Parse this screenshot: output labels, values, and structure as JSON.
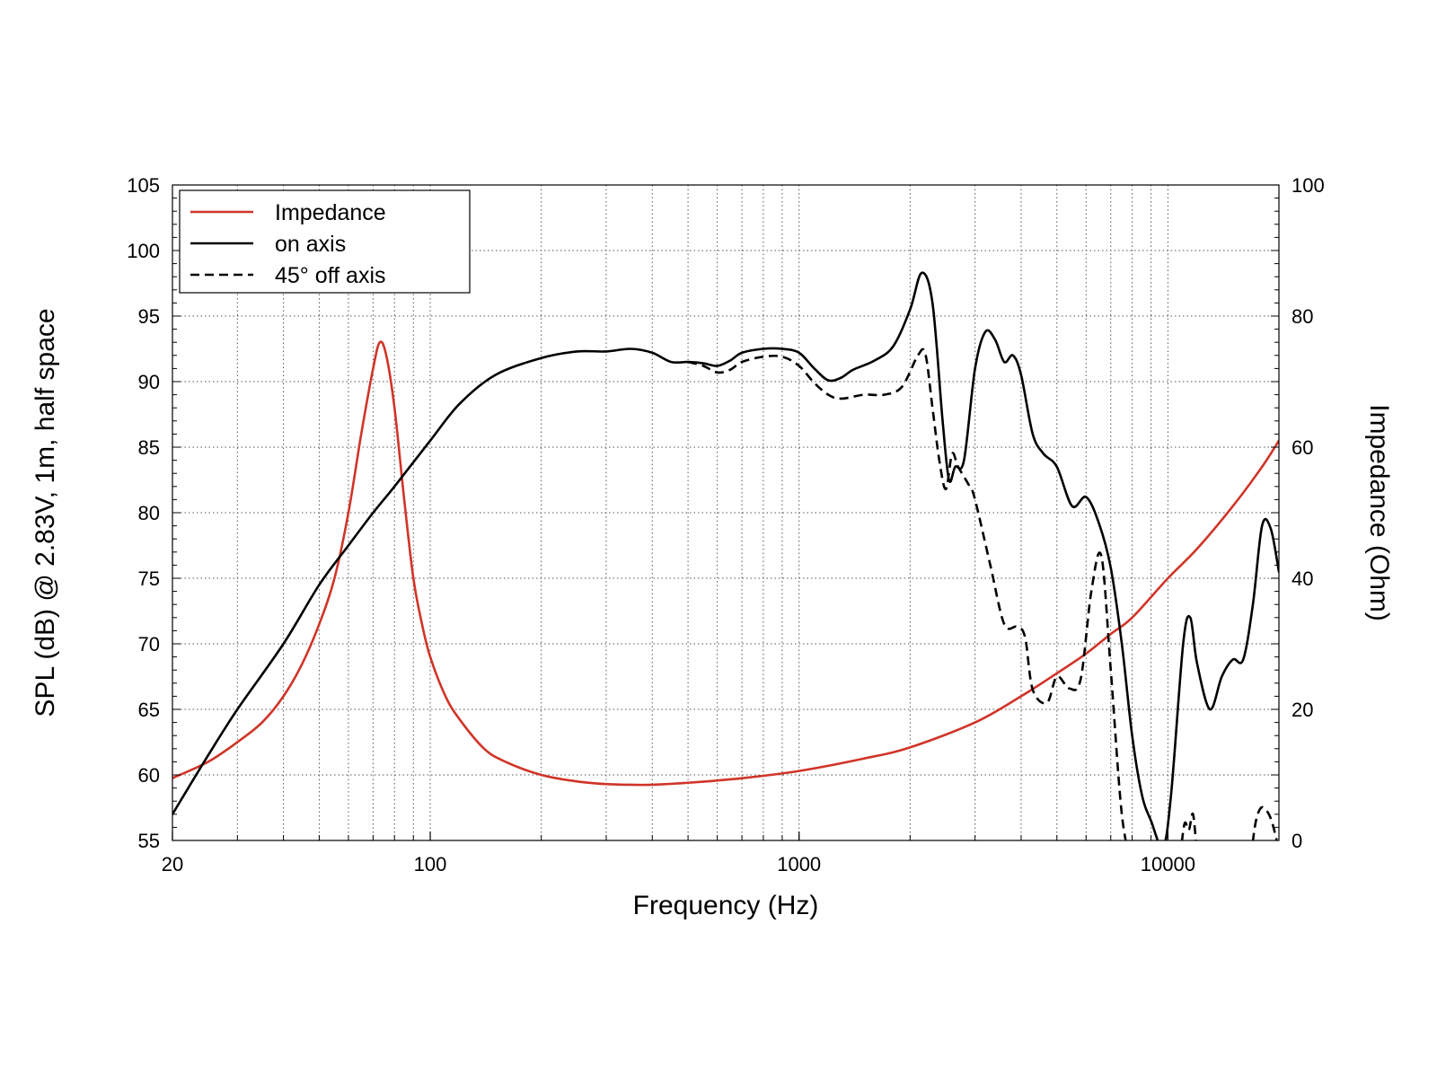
{
  "chart_data": {
    "type": "line",
    "xlabel": "Frequency (Hz)",
    "ylabel_left": "SPL (dB) @ 2.83V, 1m, half space",
    "ylabel_right": "Impedance (Ohm)",
    "x_scale": "log",
    "xlim": [
      20,
      20000
    ],
    "ylim_left": [
      55,
      105
    ],
    "ylim_right": [
      0,
      100
    ],
    "x_ticks": [
      {
        "value": 20,
        "label": "20"
      },
      {
        "value": 100,
        "label": "100"
      },
      {
        "value": 1000,
        "label": "1000"
      },
      {
        "value": 10000,
        "label": "10000"
      }
    ],
    "y_left_ticks": [
      {
        "value": 55,
        "label": "55"
      },
      {
        "value": 60,
        "label": "60"
      },
      {
        "value": 65,
        "label": "65"
      },
      {
        "value": 70,
        "label": "70"
      },
      {
        "value": 75,
        "label": "75"
      },
      {
        "value": 80,
        "label": "80"
      },
      {
        "value": 85,
        "label": "85"
      },
      {
        "value": 90,
        "label": "90"
      },
      {
        "value": 95,
        "label": "95"
      },
      {
        "value": 100,
        "label": "100"
      },
      {
        "value": 105,
        "label": "105"
      }
    ],
    "y_right_ticks": [
      {
        "value": 0,
        "label": "0"
      },
      {
        "value": 20,
        "label": "20"
      },
      {
        "value": 40,
        "label": "40"
      },
      {
        "value": 60,
        "label": "60"
      },
      {
        "value": 80,
        "label": "80"
      },
      {
        "value": 100,
        "label": "100"
      }
    ],
    "grid": true,
    "legend_position": "top-left",
    "series": [
      {
        "name": "Impedance",
        "axis": "right",
        "color": "#d03428",
        "style": "solid",
        "points": [
          [
            20,
            9.5
          ],
          [
            25,
            12
          ],
          [
            30,
            15
          ],
          [
            35,
            18
          ],
          [
            40,
            22
          ],
          [
            45,
            27
          ],
          [
            50,
            33
          ],
          [
            55,
            40
          ],
          [
            60,
            50
          ],
          [
            65,
            62
          ],
          [
            70,
            72
          ],
          [
            73,
            76
          ],
          [
            76,
            74
          ],
          [
            80,
            66
          ],
          [
            85,
            52
          ],
          [
            90,
            40
          ],
          [
            95,
            33
          ],
          [
            100,
            28
          ],
          [
            110,
            22
          ],
          [
            120,
            18.5
          ],
          [
            140,
            14
          ],
          [
            160,
            12
          ],
          [
            200,
            10
          ],
          [
            250,
            9
          ],
          [
            300,
            8.6
          ],
          [
            350,
            8.5
          ],
          [
            400,
            8.5
          ],
          [
            500,
            8.8
          ],
          [
            700,
            9.5
          ],
          [
            1000,
            10.6
          ],
          [
            1500,
            12.5
          ],
          [
            2000,
            14.2
          ],
          [
            3000,
            18
          ],
          [
            4000,
            22
          ],
          [
            5000,
            25.5
          ],
          [
            6000,
            28.5
          ],
          [
            7000,
            31.5
          ],
          [
            8000,
            34
          ],
          [
            10000,
            40
          ],
          [
            12000,
            44.5
          ],
          [
            15000,
            51
          ],
          [
            18000,
            57
          ],
          [
            20000,
            61
          ]
        ]
      },
      {
        "name": "on axis",
        "axis": "left",
        "color": "#000000",
        "style": "solid",
        "points": [
          [
            20,
            57
          ],
          [
            25,
            61.5
          ],
          [
            30,
            65
          ],
          [
            40,
            70
          ],
          [
            50,
            74.5
          ],
          [
            60,
            77.5
          ],
          [
            70,
            80
          ],
          [
            80,
            82
          ],
          [
            100,
            85.5
          ],
          [
            120,
            88.3
          ],
          [
            150,
            90.5
          ],
          [
            200,
            91.8
          ],
          [
            250,
            92.3
          ],
          [
            300,
            92.3
          ],
          [
            350,
            92.5
          ],
          [
            400,
            92.2
          ],
          [
            450,
            91.5
          ],
          [
            500,
            91.5
          ],
          [
            550,
            91.4
          ],
          [
            600,
            91.2
          ],
          [
            650,
            91.6
          ],
          [
            700,
            92.2
          ],
          [
            800,
            92.5
          ],
          [
            900,
            92.5
          ],
          [
            1000,
            92.2
          ],
          [
            1100,
            91
          ],
          [
            1200,
            90.1
          ],
          [
            1300,
            90.3
          ],
          [
            1400,
            90.9
          ],
          [
            1600,
            91.6
          ],
          [
            1800,
            92.7
          ],
          [
            2000,
            95.5
          ],
          [
            2150,
            98.3
          ],
          [
            2300,
            96
          ],
          [
            2450,
            87
          ],
          [
            2550,
            82.5
          ],
          [
            2650,
            83.5
          ],
          [
            2800,
            84
          ],
          [
            3000,
            91
          ],
          [
            3200,
            93.8
          ],
          [
            3400,
            93.2
          ],
          [
            3600,
            91.5
          ],
          [
            3800,
            92
          ],
          [
            4000,
            90.5
          ],
          [
            4300,
            86
          ],
          [
            4600,
            84.5
          ],
          [
            5000,
            83.5
          ],
          [
            5500,
            80.5
          ],
          [
            6000,
            81.2
          ],
          [
            6500,
            79.2
          ],
          [
            7000,
            75.8
          ],
          [
            7500,
            70
          ],
          [
            8000,
            63
          ],
          [
            8500,
            58.5
          ],
          [
            9000,
            56.5
          ],
          [
            9700,
            54.5
          ],
          [
            10200,
            58.5
          ],
          [
            11000,
            70
          ],
          [
            11500,
            72
          ],
          [
            12000,
            68.5
          ],
          [
            13000,
            65
          ],
          [
            14000,
            67.5
          ],
          [
            15000,
            68.8
          ],
          [
            16000,
            68.8
          ],
          [
            17000,
            73
          ],
          [
            18000,
            79
          ],
          [
            19000,
            78.8
          ],
          [
            20000,
            75.5
          ]
        ]
      },
      {
        "name": "45° off axis",
        "axis": "left",
        "color": "#000000",
        "style": "dashed",
        "points": [
          [
            500,
            91.5
          ],
          [
            550,
            91.2
          ],
          [
            600,
            90.7
          ],
          [
            650,
            90.9
          ],
          [
            700,
            91.5
          ],
          [
            800,
            91.9
          ],
          [
            900,
            91.9
          ],
          [
            1000,
            91.2
          ],
          [
            1100,
            89.9
          ],
          [
            1200,
            89
          ],
          [
            1300,
            88.7
          ],
          [
            1500,
            89
          ],
          [
            1700,
            89
          ],
          [
            1900,
            89.6
          ],
          [
            2100,
            92
          ],
          [
            2200,
            92.1
          ],
          [
            2300,
            88
          ],
          [
            2400,
            84
          ],
          [
            2500,
            81.8
          ],
          [
            2600,
            84.5
          ],
          [
            2700,
            83.5
          ],
          [
            2900,
            82
          ],
          [
            3000,
            81
          ],
          [
            3300,
            76
          ],
          [
            3600,
            71.5
          ],
          [
            3900,
            71.3
          ],
          [
            4100,
            70.5
          ],
          [
            4300,
            66.5
          ],
          [
            4700,
            65.5
          ],
          [
            5000,
            67.5
          ],
          [
            5400,
            66.6
          ],
          [
            5800,
            67.3
          ],
          [
            6200,
            74
          ],
          [
            6600,
            76.7
          ],
          [
            7000,
            68
          ],
          [
            7500,
            57
          ],
          [
            8000,
            53
          ]
        ]
      },
      {
        "name": "45° off axis (segment 2)",
        "axis": "left",
        "color": "#000000",
        "style": "dashed",
        "points": [
          [
            10800,
            53.8
          ],
          [
            11100,
            56.3
          ],
          [
            11400,
            55.8
          ],
          [
            11700,
            57
          ],
          [
            12000,
            53.8
          ]
        ]
      },
      {
        "name": "45° off axis (segment 3)",
        "axis": "left",
        "color": "#000000",
        "style": "dashed",
        "points": [
          [
            16800,
            53.8
          ],
          [
            17300,
            56.4
          ],
          [
            17900,
            57.5
          ],
          [
            18600,
            57.2
          ],
          [
            19200,
            56.3
          ],
          [
            20000,
            54.3
          ]
        ]
      }
    ],
    "legend": [
      {
        "label": "Impedance",
        "color": "#d03428",
        "style": "solid"
      },
      {
        "label": "on axis",
        "color": "#000000",
        "style": "solid"
      },
      {
        "label": "45° off axis",
        "color": "#000000",
        "style": "dashed"
      }
    ]
  }
}
